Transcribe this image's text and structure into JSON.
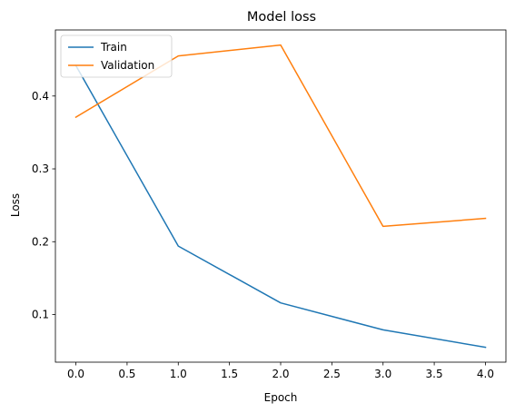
{
  "chart_data": {
    "type": "line",
    "title": "Model loss",
    "xlabel": "Epoch",
    "ylabel": "Loss",
    "x": [
      0,
      1,
      2,
      3,
      4
    ],
    "series": [
      {
        "name": "Train",
        "color": "#1f77b4",
        "values": [
          0.442,
          0.194,
          0.116,
          0.079,
          0.055
        ]
      },
      {
        "name": "Validation",
        "color": "#ff7f0e",
        "values": [
          0.371,
          0.455,
          0.47,
          0.221,
          0.232
        ]
      }
    ],
    "xlim": [
      -0.2,
      4.2
    ],
    "ylim": [
      0.0346,
      0.4907
    ],
    "xticks": [
      {
        "value": 0.0,
        "label": "0.0"
      },
      {
        "value": 0.5,
        "label": "0.5"
      },
      {
        "value": 1.0,
        "label": "1.0"
      },
      {
        "value": 1.5,
        "label": "1.5"
      },
      {
        "value": 2.0,
        "label": "2.0"
      },
      {
        "value": 2.5,
        "label": "2.5"
      },
      {
        "value": 3.0,
        "label": "3.0"
      },
      {
        "value": 3.5,
        "label": "3.5"
      },
      {
        "value": 4.0,
        "label": "4.0"
      }
    ],
    "yticks": [
      {
        "value": 0.1,
        "label": "0.1"
      },
      {
        "value": 0.2,
        "label": "0.2"
      },
      {
        "value": 0.3,
        "label": "0.3"
      },
      {
        "value": 0.4,
        "label": "0.4"
      }
    ],
    "grid": false,
    "legend_position": "upper left"
  }
}
